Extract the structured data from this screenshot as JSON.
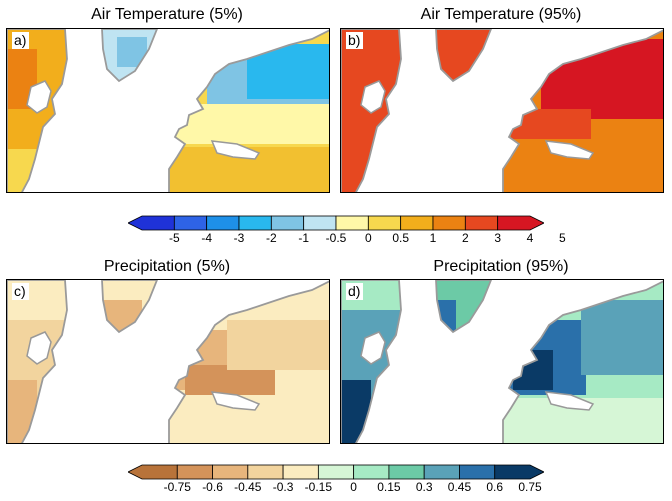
{
  "panels": [
    {
      "letter": "a)",
      "title": "Air Temperature (5%)",
      "variable": "temperature",
      "percentile": "5%"
    },
    {
      "letter": "b)",
      "title": "Air Temperature (95%)",
      "variable": "temperature",
      "percentile": "95%"
    },
    {
      "letter": "c)",
      "title": "Precipitation (5%)",
      "variable": "precipitation",
      "percentile": "5%"
    },
    {
      "letter": "d)",
      "title": "Precipitation (95%)",
      "variable": "precipitation",
      "percentile": "95%"
    }
  ],
  "colorbars": {
    "temperature": {
      "ticks": [
        "-5",
        "-4",
        "-3",
        "-2",
        "-1",
        "-0.5",
        "0",
        "0.5",
        "1",
        "2",
        "3",
        "4",
        "5"
      ],
      "colors": [
        "#1f32d8",
        "#2e63e6",
        "#1e90e8",
        "#29b8ee",
        "#7fc4e4",
        "#bfe4f2",
        "#fff8a8",
        "#f7d84e",
        "#f2ae1c",
        "#eb8212",
        "#e64820",
        "#d61622"
      ]
    },
    "precipitation": {
      "ticks": [
        "-0.75",
        "-0.6",
        "-0.45",
        "-0.3",
        "-0.15",
        "0",
        "0.15",
        "0.3",
        "0.45",
        "0.6",
        "0.75"
      ],
      "colors": [
        "#b8733a",
        "#d4935a",
        "#e7b57c",
        "#f2d49e",
        "#fbecc0",
        "#d6f6d6",
        "#a6eac4",
        "#6ccaa6",
        "#5aa2b8",
        "#2a70aa",
        "#0a3a66"
      ]
    }
  }
}
